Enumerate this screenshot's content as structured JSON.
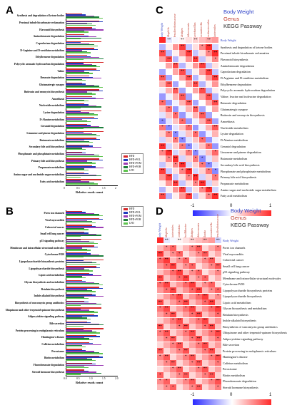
{
  "panelA": {
    "letter": "A",
    "xlabel": "Relative reads count",
    "ticks": [
      "0",
      "0.5",
      "1",
      "1.5",
      "2"
    ],
    "legend": [
      {
        "label": "HFD",
        "color": "#d62728"
      },
      {
        "label": "HFD+POL",
        "color": "#1f3bbd"
      },
      {
        "label": "HFD+POM",
        "color": "#9b3bb5"
      },
      {
        "label": "HFD+POH",
        "color": "#1b7e3a"
      },
      {
        "label": "LFD",
        "color": "#5ec44f"
      }
    ],
    "rows": [
      "Synthesis and degradation of ketone bodies",
      "Proximal tubule bicarbonate reclamation",
      "Flavonoid biosynthesis",
      "Aminobenzoate degradation",
      "Caprolactam degradation",
      "D-Arginine and D-ornithine metabolism",
      "Ethylbenzene degradation",
      "Polycyclic aromatic hydrocarbon degradation",
      "Valine",
      "Benzoate degradation",
      "Glutamatergic synapse",
      "Butirosin and neomycin biosynthesis",
      "Amoebiasis",
      "Nucleotide metabolism",
      "Lysine degradation",
      "D-Alanine metabolism",
      "Geraniol degradation",
      "Limonene and pinene degradation",
      "Butanoate metabolism",
      "Secondary bile acid biosynthesis",
      "Phosphonate and phosphinate metabolism",
      "Primary bile acid biosynthesis",
      "Propanoate metabolism",
      "Amino sugar and nucleotide sugar metabolism",
      "Fatty acid metabolism"
    ]
  },
  "panelB": {
    "letter": "B",
    "xlabel": "Relative reads count",
    "ticks": [
      "0.0",
      "0.5",
      "1.0",
      "1.5",
      "2.0"
    ],
    "legend": [
      {
        "label": "HFD",
        "color": "#d62728"
      },
      {
        "label": "HFD+POL",
        "color": "#1f3bbd"
      },
      {
        "label": "HFD+POM",
        "color": "#9b3bb5"
      },
      {
        "label": "HFD+POH",
        "color": "#1b7e3a"
      },
      {
        "label": "LFD",
        "color": "#5ec44f"
      }
    ],
    "rows": [
      "Pores ion channels",
      "Viral myocarditis",
      "Colorectal cancer",
      "Small cell lung cancer",
      "p53 signaling pathway",
      "Membrane and intracellular structural molecules",
      "Cytochrome P450",
      "Lipopolysaccharide biosynthesis proteins",
      "Lipopolysaccharide biosynthesis",
      "Lipoic acid metabolism",
      "Glycan biosynthesis and metabolism",
      "Betalain biosynthesis",
      "Indole alkaloid biosynthesis",
      "Biosynthesis of vancomycin group antibiotics",
      "Ubiquinone and other terpenoid-quinone biosynthesis",
      "Adipocytokine signaling pathway",
      "Bile secretion",
      "Protein processing in endoplasmic reticulum",
      "Huntington's disease",
      "Caffeine metabolism",
      "Peroxisome",
      "Biotin metabolism",
      "Fluorobenzoate degradation",
      "Steroid hormone biosynthesis"
    ]
  },
  "panelC": {
    "letter": "C",
    "legend": [
      {
        "label": "Body Weight",
        "color": "#2b3fc7"
      },
      {
        "label": "Genus",
        "color": "#c0392b"
      },
      {
        "label": "KEGG Passway",
        "color": "#222222"
      }
    ],
    "columns": [
      "Body Weight",
      "Bilophila",
      "Desulfovibrionaceae",
      "Alistipes",
      "Akkermansia",
      "Lactobacillus",
      "Parasutterella",
      "Parabacteroides",
      "Bacteroides"
    ],
    "body_weight_label": "Body Weight",
    "rows": [
      "Synthesis and degradation of ketone bodies",
      "Proximal tubule bicarbonate reclamation",
      "Flavonoid biosynthesis",
      "Aminobenzoate degradation",
      "Caprolactam degradation",
      "D-Arginine and D-ornithine metabolism",
      "Ethylbenzene degradation",
      "Polycyclic aromatic hydrocarbon degradation",
      "Valine; leucine and isoleucine degradation",
      "Benzoate degradation",
      "Glutamatergic synapse",
      "Butirosin and neomycin biosynthesis",
      "Amoebiasis",
      "Nucleotide metabolism",
      "Lysine degradation",
      "D-Alanine metabolism",
      "Geraniol degradation",
      "Limonene and pinene degradation",
      "Butanoate metabolism",
      "Secondary bile acid biosynthesis",
      "Phosphonate and phosphinate metabolism",
      "Primary bile acid biosynthesis",
      "Propanoate metabolism",
      "Amino sugar and nucleotide sugar metabolism",
      "Fatty acid metabolism"
    ],
    "colorbar": {
      "min": "-1",
      "mid": "0",
      "max": "1"
    }
  },
  "panelD": {
    "letter": "D",
    "legend": [
      {
        "label": "Body Weight",
        "color": "#2b3fc7"
      },
      {
        "label": "Genus",
        "color": "#c0392b"
      },
      {
        "label": "KEGG Passway",
        "color": "#222222"
      }
    ],
    "columns": [
      "Body Weight",
      "Bilophila",
      "Bacteroides",
      "Romboutsia",
      "Oscillibacter",
      "Alistipes",
      "Akkermansia",
      "Blautia",
      "Parasutterella",
      "Desulfovibrionaceae"
    ],
    "body_weight_label": "Body Weight",
    "rows": [
      "Pores ion channels",
      "Viral myocarditis",
      "Colorectal cancer",
      "Small cell lung cancer",
      "p53 signaling pathway",
      "Membrane and intracellular structural molecules",
      "Cytochrome P450",
      "Lipopolysaccharide biosynthesis proteins",
      "Lipopolysaccharide biosynthesis",
      "Lipoic acid metabolism",
      "Glycan biosynthesis and metabolism",
      "Betalain biosynthesis",
      "Indole alkaloid biosynthesis",
      "Biosynthesis of vancomycin group antibiotics",
      "Ubiquinone and other terpenoid-quinone biosynthesis",
      "Adipocytokine signaling pathway",
      "Bile secretion",
      "Protein processing in endoplasmic reticulum",
      "Huntington's disease",
      "Caffeine metabolism",
      "Peroxisome",
      "Biotin metabolism",
      "Fluorobenzoate degradation",
      "Steroid hormone biosynthesis"
    ],
    "colorbar": {
      "min": "-1",
      "mid": "0",
      "max": "1"
    }
  }
}
